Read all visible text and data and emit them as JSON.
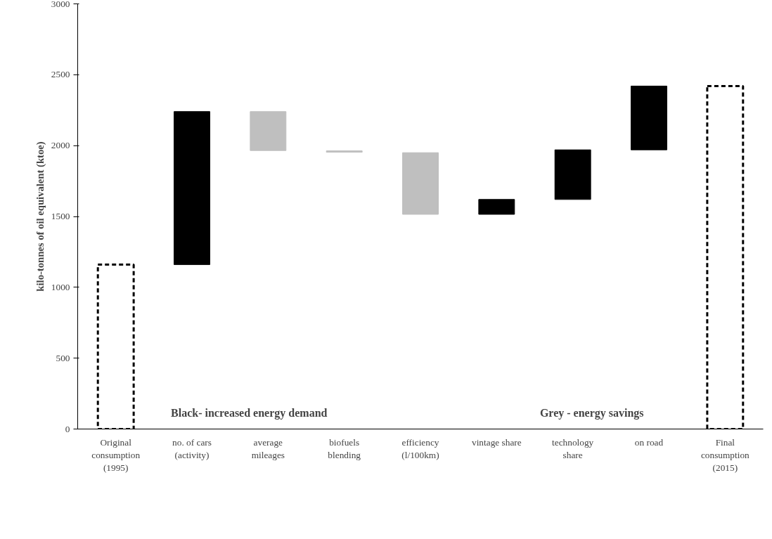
{
  "chart_data": {
    "type": "bar",
    "ylabel": "kilo-tonnes of oil equivalent (ktoe)",
    "categories": [
      "Original\nconsumption\n(1995)",
      "no. of cars\n(activity)",
      "average\nmileages",
      "biofuels\nblending",
      "efficiency\n(l/100km)",
      "vintage share",
      "technology\nshare",
      "on road",
      "Final\nconsumption\n(2015)"
    ],
    "series": [
      {
        "color": "#ffffff",
        "line_style": "dashed",
        "values": [
          1160,
          null,
          null,
          null,
          null,
          null,
          null,
          null,
          2420
        ]
      },
      {
        "colors": [
          null,
          "#000000",
          "#bfbfbf",
          "#bfbfbf",
          "#bfbfbf",
          "#000000",
          "#000000",
          "#000000",
          null
        ],
        "base": [
          null,
          1160,
          2240,
          1963,
          1950,
          1515,
          1620,
          1970,
          null
        ],
        "values": [
          null,
          1080,
          -275,
          -10,
          -435,
          105,
          350,
          450,
          null
        ]
      }
    ],
    "ylim": [
      0,
      3000
    ],
    "yticks": [
      0,
      500,
      1000,
      1500,
      2000,
      2500,
      3000
    ],
    "grid": false,
    "annotations": [
      "Black- increased energy demand",
      "Grey - energy savings"
    ]
  }
}
